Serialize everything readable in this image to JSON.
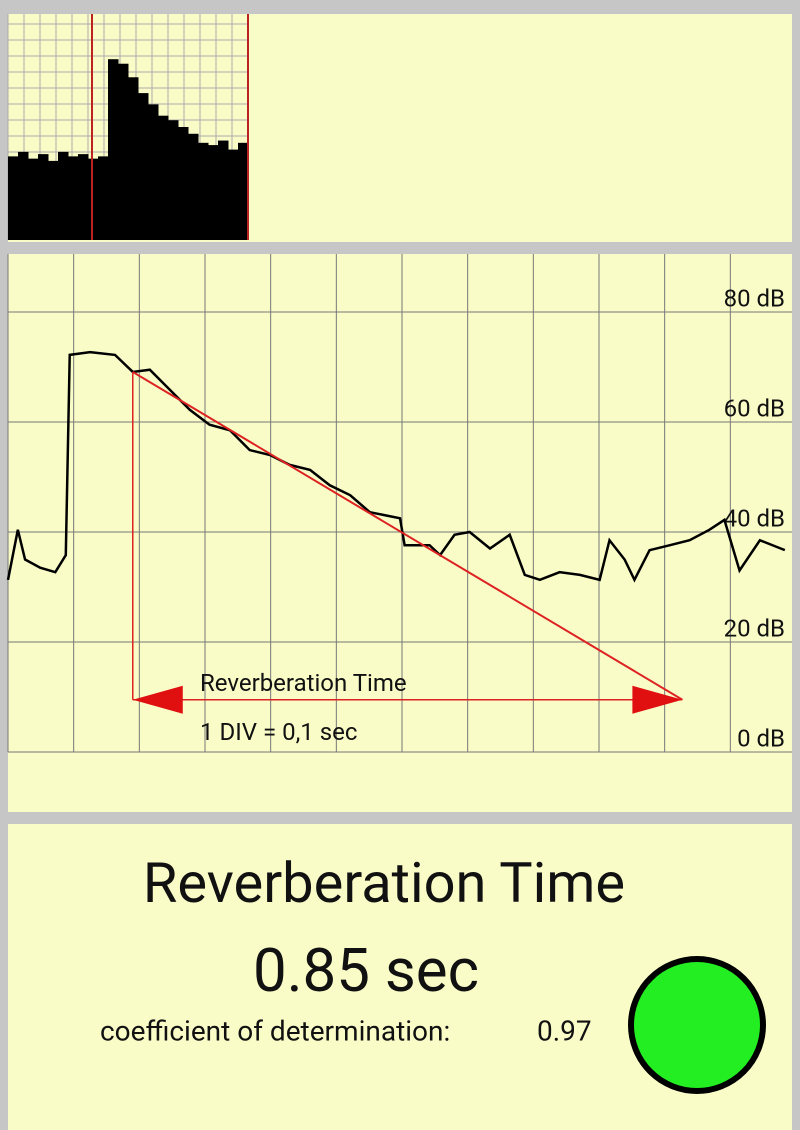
{
  "waveform": {
    "values": [
      0.37,
      0.39,
      0.36,
      0.38,
      0.35,
      0.39,
      0.37,
      0.38,
      0.36,
      0.37,
      0.8,
      0.78,
      0.72,
      0.65,
      0.6,
      0.55,
      0.53,
      0.5,
      0.47,
      0.43,
      0.42,
      0.44,
      0.4,
      0.43
    ],
    "ylim": [
      0,
      1
    ]
  },
  "decay_chart": {
    "xlim": [
      0,
      1.2
    ],
    "ylim": [
      0,
      90
    ],
    "yticks": [
      {
        "value": 0,
        "label": "0 dB"
      },
      {
        "value": 20,
        "label": "20 dB"
      },
      {
        "value": 40,
        "label": "40 dB"
      },
      {
        "value": 60,
        "label": "60 dB"
      },
      {
        "value": 80,
        "label": "80 dB"
      }
    ],
    "xticks": [
      0,
      0.1,
      0.2,
      0.3,
      0.4,
      0.5,
      0.6,
      0.7,
      0.8,
      0.9,
      1.0,
      1.1
    ],
    "x": [
      0,
      0.015,
      0.026,
      0.049,
      0.072,
      0.088,
      0.094,
      0.125,
      0.163,
      0.19,
      0.216,
      0.247,
      0.277,
      0.307,
      0.338,
      0.368,
      0.399,
      0.429,
      0.46,
      0.49,
      0.521,
      0.551,
      0.597,
      0.604,
      0.642,
      0.658,
      0.68,
      0.703,
      0.734,
      0.764,
      0.787,
      0.81,
      0.84,
      0.871,
      0.901,
      0.916,
      0.939,
      0.954,
      0.977,
      1.008,
      1.038,
      1.068,
      1.091,
      1.114,
      1.145,
      1.183
    ],
    "values": [
      31.3,
      40.4,
      35,
      33.5,
      32.7,
      35.8,
      72.2,
      72.7,
      72.2,
      69.1,
      69.5,
      65.8,
      62.2,
      59.5,
      58.5,
      54.9,
      54,
      52.2,
      51.3,
      48.5,
      46.7,
      43.6,
      42.5,
      37.6,
      37.6,
      35.8,
      39.5,
      40,
      37,
      39.5,
      32.2,
      31.3,
      32.7,
      32.2,
      31.3,
      38.5,
      35,
      31.3,
      36.7,
      37.6,
      38.5,
      40.4,
      42.2,
      33,
      38.5,
      36.7
    ],
    "fit_line": {
      "x": [
        0.19,
        1.027
      ],
      "values": [
        69.1,
        9.5
      ]
    },
    "arrow_label": "Reverberation Time",
    "division_label": "1 DIV = 0,1 sec"
  },
  "result": {
    "title": "Reverberation Time",
    "value": "0.85 sec",
    "coefficient_label": "coefficient of determination:",
    "coefficient_value": "0.97"
  }
}
